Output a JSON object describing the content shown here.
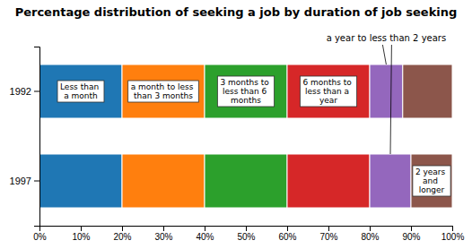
{
  "chart_data": {
    "type": "bar",
    "orientation": "horizontal",
    "stacked": true,
    "title": "Percentage distribution of seeking a job by duration of job seeking",
    "categories": [
      "1992",
      "1997"
    ],
    "series": [
      {
        "name": "Less than\na month",
        "values": [
          20,
          20
        ]
      },
      {
        "name": "a month to less\nthan 3 months",
        "values": [
          20,
          20
        ]
      },
      {
        "name": "3 months to\nless than 6\nmonths",
        "values": [
          20,
          20
        ]
      },
      {
        "name": "6 months to\nless than a\nyear",
        "values": [
          20,
          20
        ]
      },
      {
        "name": "a year to less than 2 years",
        "values": [
          8,
          10
        ]
      },
      {
        "name": "2 years\nand\nlonger",
        "values": [
          12,
          10
        ]
      }
    ],
    "xlim": [
      0,
      100
    ],
    "xticks": [
      {
        "value": 0,
        "label": "0%"
      },
      {
        "value": 10,
        "label": "10%"
      },
      {
        "value": 20,
        "label": "20%"
      },
      {
        "value": 30,
        "label": "30%"
      },
      {
        "value": 40,
        "label": "40%"
      },
      {
        "value": 50,
        "label": "50%"
      },
      {
        "value": 60,
        "label": "60%"
      },
      {
        "value": 70,
        "label": "70%"
      },
      {
        "value": 80,
        "label": "80%"
      },
      {
        "value": 90,
        "label": "90%"
      },
      {
        "value": 100,
        "label": "100%"
      }
    ],
    "grid": false
  }
}
